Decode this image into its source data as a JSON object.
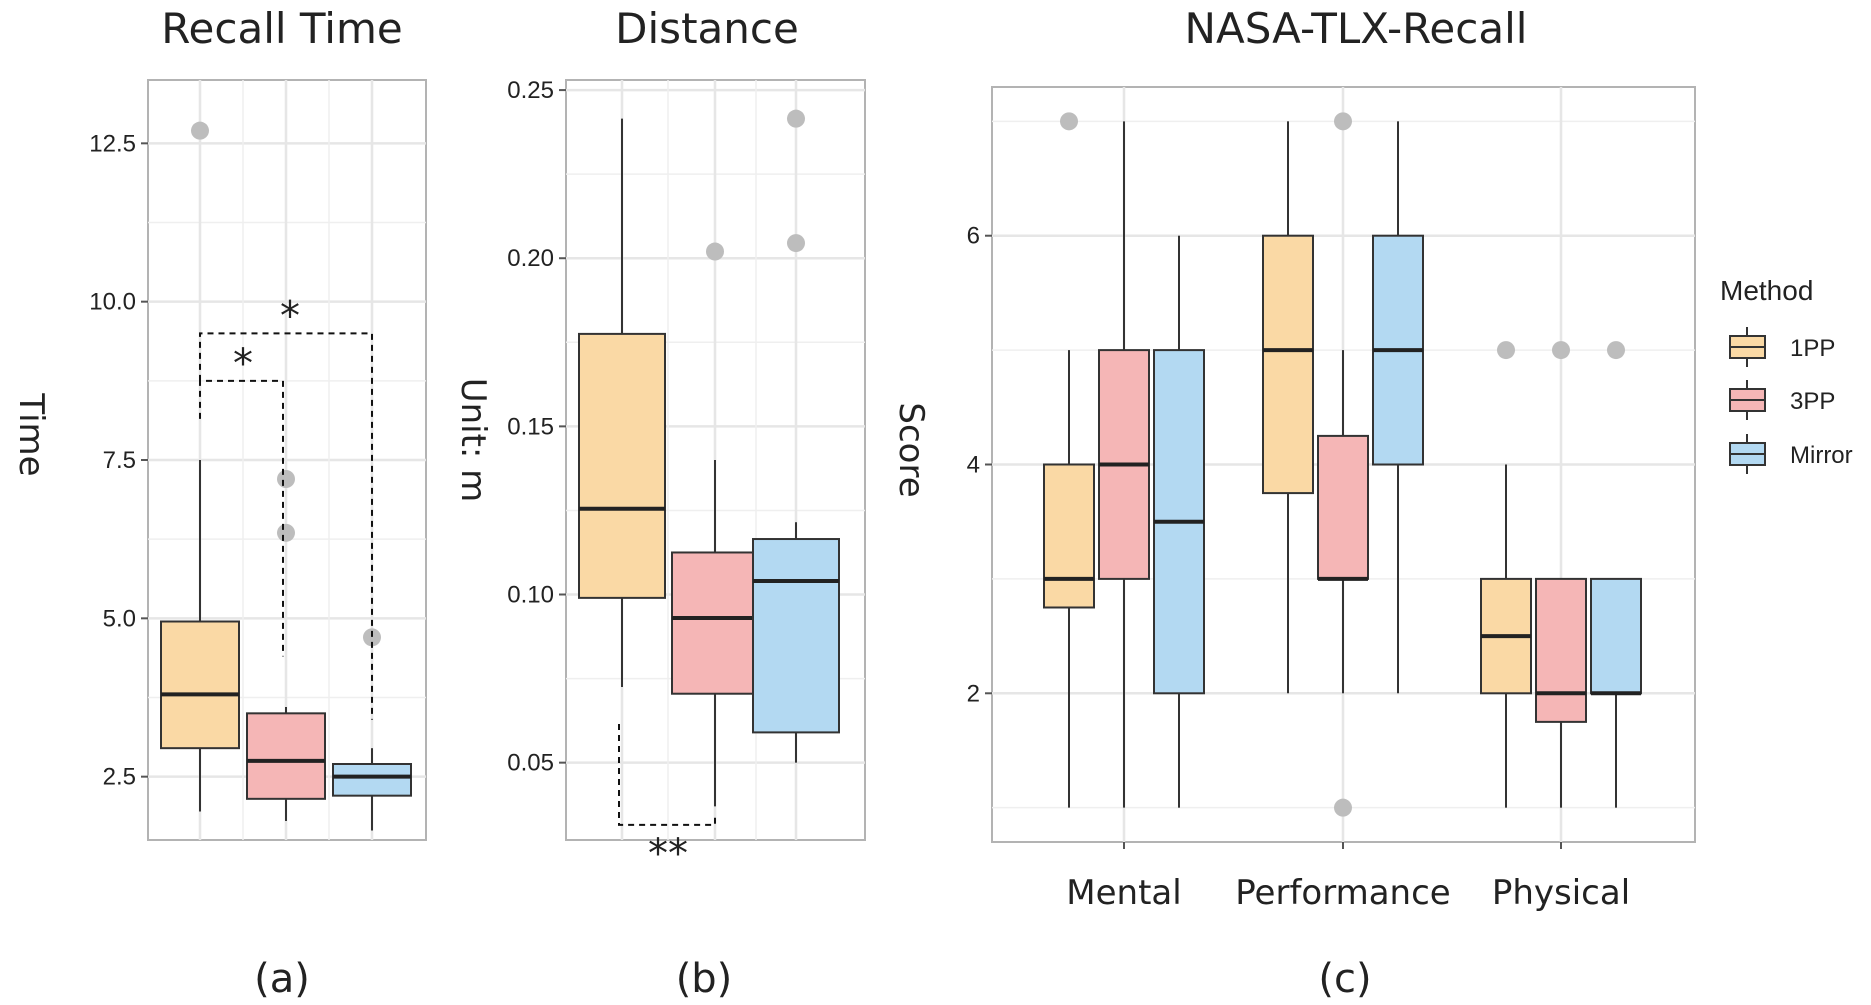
{
  "chart_data": [
    {
      "type": "box",
      "title": "Recall Time",
      "ylabel": "Time",
      "caption": "(a)",
      "ylim": [
        1.5,
        13.5
      ],
      "yticks": [
        2.5,
        5.0,
        7.5,
        10.0,
        12.5
      ],
      "ytick_labels": [
        "2.5",
        "5.0",
        "7.5",
        "10.0",
        "12.5"
      ],
      "grid": true,
      "groups": [
        {
          "method": "1PP",
          "min": 1.95,
          "q1": 2.95,
          "median": 3.8,
          "q3": 4.95,
          "max": 7.5,
          "outliers": [
            12.7
          ]
        },
        {
          "method": "3PP",
          "min": 1.8,
          "q1": 2.15,
          "median": 2.75,
          "q3": 3.5,
          "max": 3.6,
          "outliers": [
            6.35,
            7.2
          ]
        },
        {
          "method": "Mirror",
          "min": 1.65,
          "q1": 2.2,
          "median": 2.5,
          "q3": 2.7,
          "max": 2.95,
          "outliers": [
            4.7
          ]
        }
      ],
      "significance": [
        {
          "from": "1PP",
          "to": "3PP",
          "label": "*"
        },
        {
          "from": "1PP",
          "to": "Mirror",
          "label": "*"
        }
      ]
    },
    {
      "type": "box",
      "title": "Distance",
      "ylabel": "Unit: m",
      "caption": "(b)",
      "ylim": [
        0.027,
        0.253
      ],
      "yticks": [
        0.05,
        0.1,
        0.15,
        0.2,
        0.25
      ],
      "ytick_labels": [
        "0.05",
        "0.10",
        "0.15",
        "0.20",
        "0.25"
      ],
      "grid": true,
      "groups": [
        {
          "method": "1PP",
          "min": 0.0725,
          "q1": 0.099,
          "median": 0.1255,
          "q3": 0.1775,
          "max": 0.2415,
          "outliers": []
        },
        {
          "method": "3PP",
          "min": 0.037,
          "q1": 0.0705,
          "median": 0.093,
          "q3": 0.1125,
          "max": 0.14,
          "outliers": [
            0.202
          ]
        },
        {
          "method": "Mirror",
          "min": 0.05,
          "q1": 0.059,
          "median": 0.104,
          "q3": 0.1165,
          "max": 0.1215,
          "outliers": [
            0.2045,
            0.2415
          ]
        }
      ],
      "significance": [
        {
          "from": "1PP",
          "to": "3PP",
          "label": "**"
        }
      ]
    },
    {
      "type": "box",
      "title": "NASA-TLX-Recall",
      "ylabel": "Score",
      "caption": "(c)",
      "ylim": [
        0.7,
        7.3
      ],
      "yticks": [
        2,
        4,
        6
      ],
      "ytick_labels": [
        "2",
        "4",
        "6"
      ],
      "grid": true,
      "categories": [
        "Mental",
        "Performance",
        "Physical"
      ],
      "series": [
        {
          "name": "1PP",
          "boxes": [
            {
              "min": 1,
              "q1": 2.75,
              "median": 3.0,
              "q3": 4.0,
              "max": 5,
              "outliers": [
                7
              ]
            },
            {
              "min": 2,
              "q1": 3.75,
              "median": 5.0,
              "q3": 6.0,
              "max": 7,
              "outliers": []
            },
            {
              "min": 1,
              "q1": 2.0,
              "median": 2.5,
              "q3": 3.0,
              "max": 4,
              "outliers": [
                5
              ]
            }
          ]
        },
        {
          "name": "3PP",
          "boxes": [
            {
              "min": 1,
              "q1": 3.0,
              "median": 4.0,
              "q3": 5.0,
              "max": 7,
              "outliers": []
            },
            {
              "min": 2,
              "q1": 3.0,
              "median": 3.0,
              "q3": 4.25,
              "max": 5,
              "outliers": [
                1,
                7
              ]
            },
            {
              "min": 1,
              "q1": 1.75,
              "median": 2.0,
              "q3": 3.0,
              "max": 3,
              "outliers": [
                5
              ]
            }
          ]
        },
        {
          "name": "Mirror",
          "boxes": [
            {
              "min": 1,
              "q1": 2.0,
              "median": 3.5,
              "q3": 5.0,
              "max": 6,
              "outliers": []
            },
            {
              "min": 2,
              "q1": 4.0,
              "median": 5.0,
              "q3": 6.0,
              "max": 7,
              "outliers": []
            },
            {
              "min": 1,
              "q1": 2.0,
              "median": 2.0,
              "q3": 3.0,
              "max": 3,
              "outliers": [
                5
              ]
            }
          ]
        }
      ],
      "legend": {
        "title": "Method",
        "placement": "right"
      }
    }
  ],
  "colors": {
    "1PP": "#fad9a5",
    "3PP": "#f5b6b6",
    "Mirror": "#b3d9f2",
    "outlier": "#bdbdbd",
    "grid": "#e6e6e6",
    "panel_border": "#b3b3b3"
  }
}
